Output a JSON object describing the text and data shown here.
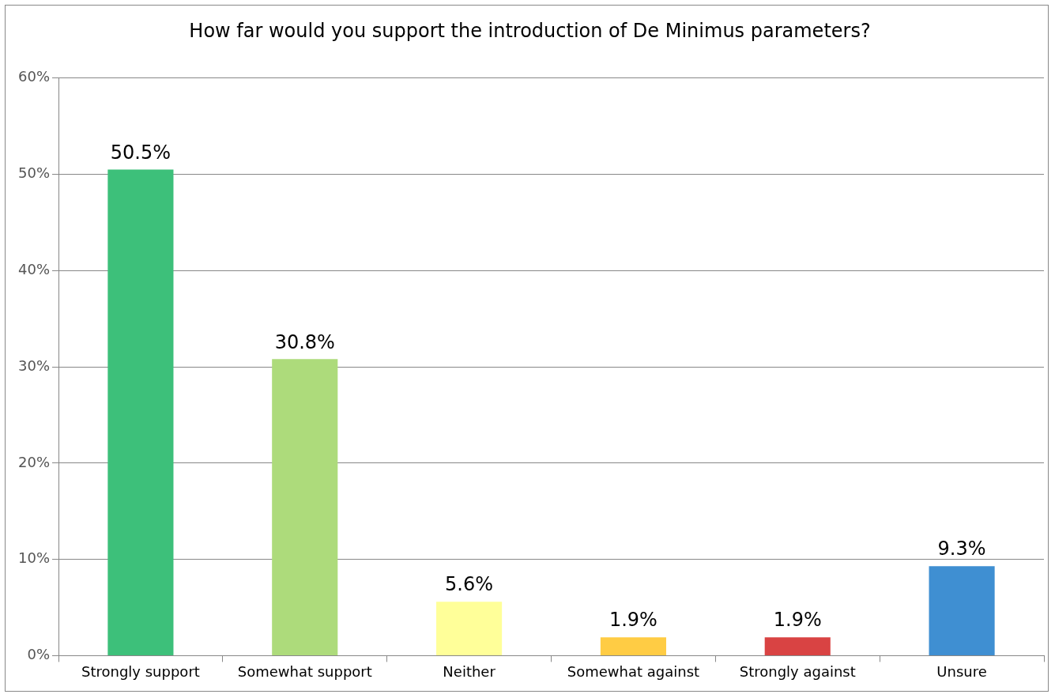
{
  "chart_data": {
    "type": "bar",
    "title": "How far would you support the introduction of De Minimus parameters?",
    "categories": [
      "Strongly support",
      "Somewhat support",
      "Neither",
      "Somewhat against",
      "Strongly against",
      "Unsure"
    ],
    "values": [
      50.5,
      30.8,
      5.6,
      1.9,
      1.9,
      9.3
    ],
    "colors": [
      "#3dc07a",
      "#addb7b",
      "#ffff99",
      "#ffcc44",
      "#d94343",
      "#3f8fd2"
    ],
    "value_labels": [
      "50.5%",
      "30.8%",
      "5.6%",
      "1.9%",
      "1.9%",
      "9.3%"
    ],
    "ylim": [
      0,
      60
    ],
    "yticks": [
      {
        "value": 0,
        "label": "0%"
      },
      {
        "value": 10,
        "label": "10%"
      },
      {
        "value": 20,
        "label": "20%"
      },
      {
        "value": 30,
        "label": "30%"
      },
      {
        "value": 40,
        "label": "40%"
      },
      {
        "value": 50,
        "label": "50%"
      },
      {
        "value": 60,
        "label": "60%"
      }
    ],
    "grid": "y"
  }
}
